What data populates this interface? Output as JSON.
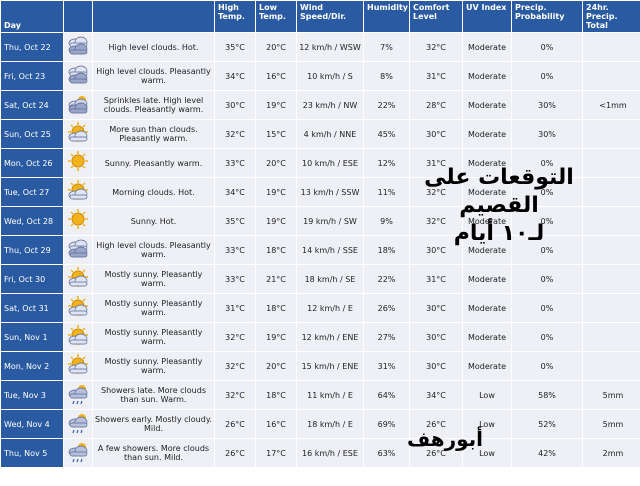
{
  "headers": {
    "day": "Day",
    "high": "High Temp.",
    "low": "Low Temp.",
    "wind": "Wind Speed/Dir.",
    "humidity": "Humidity",
    "comfort": "Comfort Level",
    "uv": "UV Index",
    "precip_prob": "Precip. Probability",
    "precip_total": "24hr. Precip. Total"
  },
  "icon_colors": {
    "sun": "#f2b21b",
    "cloud": "#9aa6c8",
    "rain": "#3a5fb0"
  },
  "rows": [
    {
      "day": "Thu, Oct 22",
      "icon": "cloud-icon",
      "desc": "High level clouds. Hot.",
      "high": "35°C",
      "low": "20°C",
      "wind": "12 km/h / WSW",
      "hum": "7%",
      "comfort": "32°C",
      "uv": "Moderate",
      "prob": "0%",
      "total": ""
    },
    {
      "day": "Fri, Oct 23",
      "icon": "cloud-icon",
      "desc": "High level clouds. Pleasantly warm.",
      "high": "34°C",
      "low": "16°C",
      "wind": "10 km/h / S",
      "hum": "8%",
      "comfort": "31°C",
      "uv": "Moderate",
      "prob": "0%",
      "total": ""
    },
    {
      "day": "Sat, Oct 24",
      "icon": "cloud-sun-icon",
      "desc": "Sprinkles late. High level clouds. Pleasantly warm.",
      "high": "30°C",
      "low": "19°C",
      "wind": "23 km/h / NW",
      "hum": "22%",
      "comfort": "28°C",
      "uv": "Moderate",
      "prob": "30%",
      "total": "<1mm"
    },
    {
      "day": "Sun, Oct 25",
      "icon": "sun-cloud-icon",
      "desc": "More sun than clouds. Pleasantly warm.",
      "high": "32°C",
      "low": "15°C",
      "wind": "4 km/h / NNE",
      "hum": "45%",
      "comfort": "30°C",
      "uv": "Moderate",
      "prob": "30%",
      "total": ""
    },
    {
      "day": "Mon, Oct 26",
      "icon": "sun-icon",
      "desc": "Sunny. Pleasantly warm.",
      "high": "33°C",
      "low": "20°C",
      "wind": "10 km/h / ESE",
      "hum": "12%",
      "comfort": "31°C",
      "uv": "Moderate",
      "prob": "0%",
      "total": ""
    },
    {
      "day": "Tue, Oct 27",
      "icon": "sun-cloud-icon",
      "desc": "Morning clouds. Hot.",
      "high": "34°C",
      "low": "19°C",
      "wind": "13 km/h / SSW",
      "hum": "11%",
      "comfort": "32°C",
      "uv": "Moderate",
      "prob": "0%",
      "total": ""
    },
    {
      "day": "Wed, Oct 28",
      "icon": "sun-icon",
      "desc": "Sunny. Hot.",
      "high": "35°C",
      "low": "19°C",
      "wind": "19 km/h / SW",
      "hum": "9%",
      "comfort": "32°C",
      "uv": "Moderate",
      "prob": "0%",
      "total": ""
    },
    {
      "day": "Thu, Oct 29",
      "icon": "cloud-icon",
      "desc": "High level clouds. Pleasantly warm.",
      "high": "33°C",
      "low": "18°C",
      "wind": "14 km/h / SSE",
      "hum": "18%",
      "comfort": "30°C",
      "uv": "Moderate",
      "prob": "0%",
      "total": ""
    },
    {
      "day": "Fri, Oct 30",
      "icon": "sun-cloud-icon",
      "desc": "Mostly sunny. Pleasantly warm.",
      "high": "33°C",
      "low": "21°C",
      "wind": "18 km/h / SE",
      "hum": "22%",
      "comfort": "31°C",
      "uv": "Moderate",
      "prob": "0%",
      "total": ""
    },
    {
      "day": "Sat, Oct 31",
      "icon": "sun-cloud-icon",
      "desc": "Mostly sunny. Pleasantly warm.",
      "high": "31°C",
      "low": "18°C",
      "wind": "12 km/h / E",
      "hum": "26%",
      "comfort": "30°C",
      "uv": "Moderate",
      "prob": "0%",
      "total": ""
    },
    {
      "day": "Sun, Nov 1",
      "icon": "sun-cloud-icon",
      "desc": "Mostly sunny. Pleasantly warm.",
      "high": "32°C",
      "low": "19°C",
      "wind": "12 km/h / ENE",
      "hum": "27%",
      "comfort": "30°C",
      "uv": "Moderate",
      "prob": "0%",
      "total": ""
    },
    {
      "day": "Mon, Nov 2",
      "icon": "sun-cloud-icon",
      "desc": "Mostly sunny. Pleasantly warm.",
      "high": "32°C",
      "low": "20°C",
      "wind": "15 km/h / ENE",
      "hum": "31%",
      "comfort": "30°C",
      "uv": "Moderate",
      "prob": "0%",
      "total": ""
    },
    {
      "day": "Tue, Nov 3",
      "icon": "rain-icon",
      "desc": "Showers late. More clouds than sun. Warm.",
      "high": "32°C",
      "low": "18°C",
      "wind": "11 km/h / E",
      "hum": "64%",
      "comfort": "34°C",
      "uv": "Low",
      "prob": "58%",
      "total": "5mm"
    },
    {
      "day": "Wed, Nov 4",
      "icon": "rain-icon",
      "desc": "Showers early. Mostly cloudy. Mild.",
      "high": "26°C",
      "low": "16°C",
      "wind": "18 km/h / E",
      "hum": "69%",
      "comfort": "26°C",
      "uv": "Low",
      "prob": "52%",
      "total": "5mm"
    },
    {
      "day": "Thu, Nov 5",
      "icon": "rain-icon",
      "desc": "A few showers. More clouds than sun. Mild.",
      "high": "26°C",
      "low": "17°C",
      "wind": "16 km/h / ESE",
      "hum": "63%",
      "comfort": "26°C",
      "uv": "Low",
      "prob": "42%",
      "total": "2mm"
    }
  ],
  "overlay": {
    "line1": "التوقعات على القصيم",
    "line2": "لـ١٠ أيام",
    "signature": "أبورهف"
  }
}
